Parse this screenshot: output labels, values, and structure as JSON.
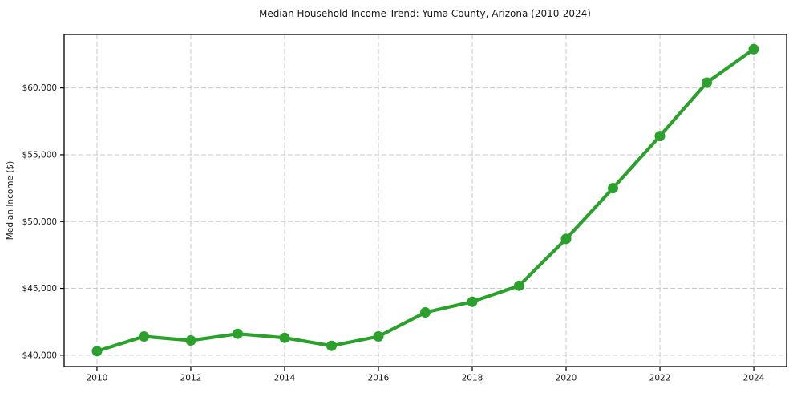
{
  "chart_data": {
    "type": "line",
    "title": "Median Household Income Trend: Yuma County, Arizona (2010-2024)",
    "xlabel": "",
    "ylabel": "Median Income ($)",
    "x": [
      2010,
      2011,
      2012,
      2013,
      2014,
      2015,
      2016,
      2017,
      2018,
      2019,
      2020,
      2021,
      2022,
      2023,
      2024
    ],
    "values": [
      40300,
      41400,
      41100,
      41600,
      41300,
      40700,
      41400,
      43200,
      44000,
      45200,
      48700,
      52500,
      56400,
      60400,
      62900
    ],
    "xlim": [
      2009.3,
      2024.7
    ],
    "ylim": [
      39150,
      64000
    ],
    "xtick_values": [
      2010,
      2012,
      2014,
      2016,
      2018,
      2020,
      2022,
      2024
    ],
    "xtick_labels": [
      "2010",
      "2012",
      "2014",
      "2016",
      "2018",
      "2020",
      "2022",
      "2024"
    ],
    "ytick_values": [
      40000,
      45000,
      50000,
      55000,
      60000
    ],
    "ytick_labels": [
      "$40,000",
      "$45,000",
      "$50,000",
      "$55,000",
      "$60,000"
    ],
    "grid": "dashed",
    "legend_position": "none",
    "line_color": "#2ca02c",
    "marker": "circle",
    "grid_color": "#c9c9c9",
    "axis_color": "#000000",
    "background_color": "#ffffff"
  }
}
